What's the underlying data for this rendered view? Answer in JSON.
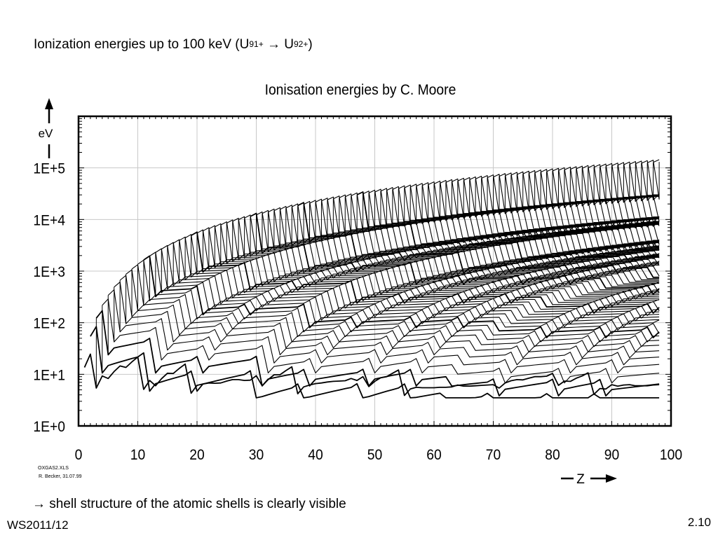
{
  "slide": {
    "heading_text": "Ionization energies up to 100 keV (U",
    "heading_sup1": "91+",
    "heading_arrow": " → U",
    "heading_sup2": "92+",
    "heading_close": ")",
    "caption": "→ shell structure of the atomic shells is clearly visible",
    "footer_left": "WS2011/12",
    "page_number": "2.10",
    "file_note": "OXGAS2.XLS",
    "author_note": "R. Becker, 31.07.99"
  },
  "chart_data": {
    "type": "line",
    "title": "Ionisation energies by C. Moore",
    "xlabel": "Z",
    "ylabel": "eV",
    "xlim": [
      0,
      100
    ],
    "ylim": [
      1,
      1000000
    ],
    "y_scale": "log",
    "x_ticks": [
      0,
      10,
      20,
      30,
      40,
      50,
      60,
      70,
      80,
      90,
      100
    ],
    "x_tick_labels": [
      "0",
      "10",
      "20",
      "30",
      "40",
      "50",
      "60",
      "70",
      "80",
      "90",
      "100"
    ],
    "y_ticks": [
      1,
      10,
      100,
      1000,
      10000,
      100000
    ],
    "y_tick_labels": [
      "1E+0",
      "1E+1",
      "1E+2",
      "1E+3",
      "1E+4",
      "1E+5"
    ],
    "grid": true,
    "legend": "none",
    "line_color": "#000000",
    "z_range": [
      1,
      98
    ],
    "description_note": "One curve per ionization stage (ion charge 0 … Z-1) plotted against nuclear charge Z; curves connect ions with equal charge state",
    "series": [
      {
        "name": "",
        "values_eV_at_Z": {
          "1": 13.6,
          "2": 24.6,
          "3": 5.4,
          "4": 9.3,
          "5": 8.3,
          "6": 11.3,
          "7": 14.5,
          "8": 13.6,
          "9": 17.4,
          "10": 21.6,
          "11": 5.1,
          "18": 15.8,
          "19": 4.3,
          "36": 14.0,
          "37": 4.2,
          "54": 12.1,
          "55": 3.9,
          "86": 10.7,
          "87": 4.1,
          "98": 6.3
        }
      },
      {
        "name": "",
        "values_eV_at_Z": {
          "2": 54.4,
          "3": 75.6,
          "4": 18.2,
          "11": 47.3,
          "12": 15.0,
          "19": 31.6,
          "20": 11.9,
          "98": 12.0
        }
      },
      {
        "name": "",
        "values_eV_at_Z": {
          "3": 122.4,
          "4": 153.9,
          "5": 37.9,
          "98": 23.0
        }
      },
      {
        "name": "",
        "values_eV_at_Z": {
          "4": 217.7,
          "98": 40.0
        }
      },
      {
        "name": "",
        "values_eV_at_Z": {
          "5": 340.2,
          "98": 55.0
        }
      },
      {
        "name": "",
        "values_eV_at_Z": {
          "10": 1362,
          "11": 1465,
          "12": 1762,
          "98": 5000
        }
      },
      {
        "name": "",
        "values_eV_at_Z": {
          "20": 5470,
          "30": 12500,
          "50": 35000,
          "70": 69000,
          "90": 115000,
          "98": 135000
        }
      }
    ]
  }
}
